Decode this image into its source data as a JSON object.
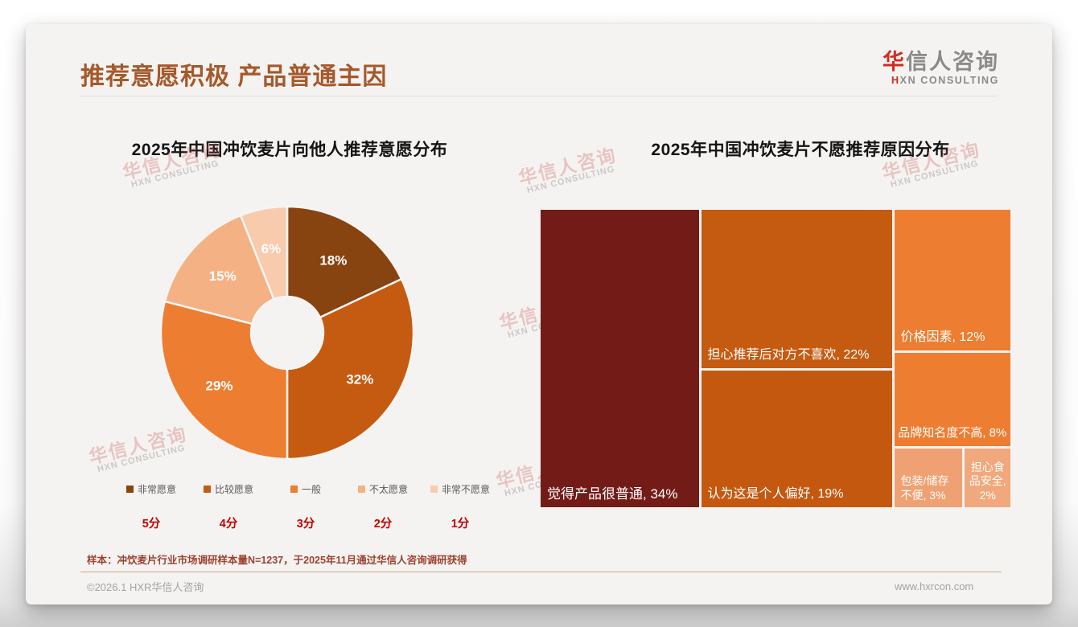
{
  "page": {
    "title": "推荐意愿积极 产品普通主因",
    "logo": {
      "cn_first": "华",
      "cn_rest": "信人咨询",
      "en_first": "H",
      "en_rest": "XN CONSULTING"
    },
    "watermark": {
      "line1": "华信人咨询",
      "line2": "HXN CONSULTING"
    },
    "footnote": "样本：冲饮麦片行业市场调研样本量N=1237，于2025年11月通过华信人咨询调研获得",
    "copyright": "©2026.1 HXR华信人咨询",
    "website": "www.hxrcon.com"
  },
  "chart_data": [
    {
      "type": "pie",
      "subtype": "donut",
      "title": "2025年中国冲饮麦片向他人推荐意愿分布",
      "categories": [
        "非常愿意",
        "比较愿意",
        "一般",
        "不太愿意",
        "非常不愿意"
      ],
      "values": [
        18,
        32,
        29,
        15,
        6
      ],
      "data_labels": [
        "18%",
        "32%",
        "29%",
        "15%",
        "6%"
      ],
      "scores": [
        "5分",
        "4分",
        "3分",
        "2分",
        "1分"
      ],
      "colors": [
        "#874310",
        "#C55A11",
        "#ED7D31",
        "#F4B183",
        "#F8CBAD"
      ],
      "legend_position": "bottom",
      "start_angle_deg": 0,
      "direction": "clockwise"
    },
    {
      "type": "treemap",
      "title": "2025年中国冲饮麦片不愿推荐原因分布",
      "items": [
        {
          "label": "觉得产品很普通",
          "value": 34,
          "display": "觉得产品很普通, 34%",
          "color": "#731B17",
          "label_align": "left",
          "label_size": 17
        },
        {
          "label": "担心推荐后对方不喜欢",
          "value": 22,
          "display": "担心推荐后对方不喜欢, 22%",
          "color": "#C55A11",
          "label_align": "left",
          "label_size": 16
        },
        {
          "label": "认为这是个人偏好",
          "value": 19,
          "display": "认为这是个人偏好, 19%",
          "color": "#C4580F",
          "label_align": "left",
          "label_size": 16
        },
        {
          "label": "价格因素",
          "value": 12,
          "display": "价格因素, 12%",
          "color": "#ED7D31",
          "label_align": "left",
          "label_size": 16
        },
        {
          "label": "品牌知名度不高",
          "value": 8,
          "display": "品牌知名度不高, 8%",
          "color": "#ED7D31",
          "label_align": "center",
          "label_size": 15
        },
        {
          "label": "包装/储存不便",
          "value": 3,
          "display": "包装/储存不便, 3%",
          "color": "#EFA173",
          "label_align": "left",
          "label_size": 14
        },
        {
          "label": "担心食品安全",
          "value": 2,
          "display": "担心食品安全, 2%",
          "color": "#F0A87C",
          "label_align": "center",
          "label_size": 14
        }
      ]
    }
  ]
}
